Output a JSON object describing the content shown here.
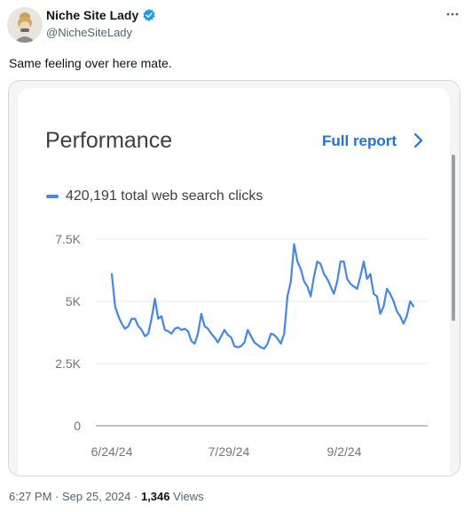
{
  "tweet": {
    "author_name": "Niche Site Lady",
    "handle": "@NicheSiteLady",
    "more_icon": "more-horizontal-icon",
    "verified_icon": "verified-badge-icon",
    "text": "Same feeling over here mate.",
    "time": "6:27 PM",
    "date": "Sep 25, 2024",
    "views_count": "1,346",
    "views_label": "Views",
    "separator": "·"
  },
  "card": {
    "title": "Performance",
    "full_report_label": "Full report",
    "chevron_icon": "chevron-right-icon",
    "legend_label": "420,191 total web search clicks",
    "accent_color": "#4285f4",
    "link_color": "#1a73e8"
  },
  "chart_data": {
    "type": "line",
    "title": "",
    "xlabel": "",
    "ylabel": "",
    "x_tick_labels": [
      "6/24/24",
      "7/29/24",
      "9/2/24"
    ],
    "y_tick_labels": [
      "0",
      "2.5K",
      "5K",
      "7.5K"
    ],
    "y_ticks": [
      0,
      2500,
      5000,
      7500
    ],
    "ylim": [
      0,
      7500
    ],
    "grid": true,
    "series": [
      {
        "name": "420,191 total web search clicks",
        "color": "#4285f4",
        "values": [
          6100,
          4800,
          4400,
          4100,
          3900,
          4000,
          4300,
          4300,
          4000,
          3850,
          3600,
          3700,
          4300,
          5100,
          4300,
          4400,
          3850,
          3800,
          3700,
          3900,
          3950,
          3850,
          3900,
          3800,
          3400,
          3300,
          3700,
          4500,
          4000,
          3900,
          3700,
          3550,
          3350,
          3600,
          3850,
          3650,
          3550,
          3200,
          3150,
          3200,
          3350,
          3850,
          3600,
          3350,
          3250,
          3150,
          3100,
          3300,
          3700,
          3650,
          3500,
          3300,
          3700,
          5200,
          5800,
          7300,
          6600,
          6300,
          5800,
          5600,
          5200,
          6000,
          6600,
          6500,
          6100,
          5900,
          5600,
          5300,
          5800,
          6600,
          6600,
          5900,
          5700,
          5600,
          5500,
          6000,
          6600,
          5900,
          6100,
          5300,
          5200,
          4500,
          4800,
          5500,
          5300,
          5000,
          4600,
          4400,
          4100,
          4400,
          5000,
          4800
        ]
      }
    ]
  }
}
